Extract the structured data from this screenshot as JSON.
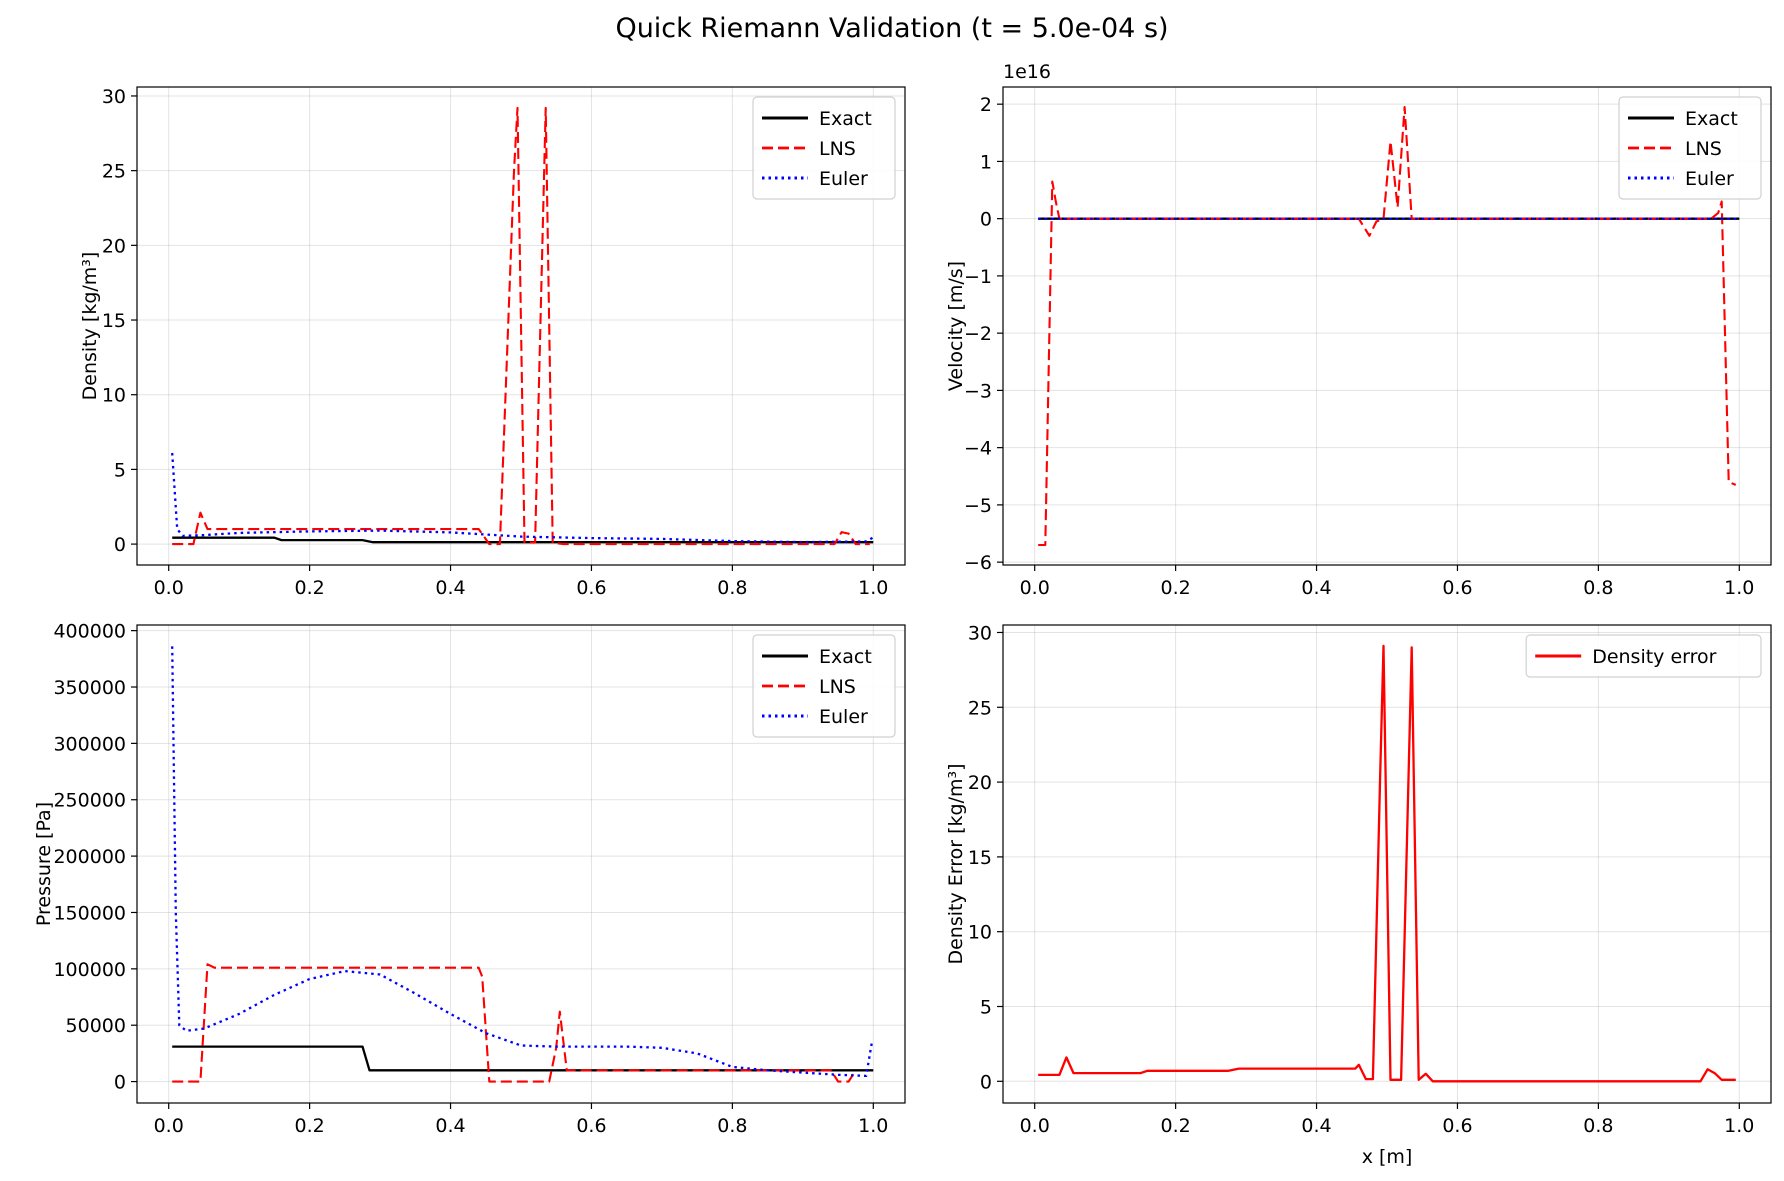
{
  "figure": {
    "title": "Quick Riemann Validation (t = 5.0e-04 s)"
  },
  "colors": {
    "exact": "#000000",
    "lns": "#ff0000",
    "euler": "#0000ff",
    "error": "#ff0000"
  },
  "chart_data": [
    {
      "type": "line",
      "ylabel": "Density [kg/m³]",
      "xlabel": "",
      "xlim": [
        -0.045,
        1.045
      ],
      "ylim": [
        -1.4,
        30.6
      ],
      "xticks": [
        0.0,
        0.2,
        0.4,
        0.6,
        0.8,
        1.0
      ],
      "xtick_labels": [
        "0.0",
        "0.2",
        "0.4",
        "0.6",
        "0.8",
        "1.0"
      ],
      "yticks": [
        0,
        5,
        10,
        15,
        20,
        25,
        30
      ],
      "ytick_labels": [
        "0",
        "5",
        "10",
        "15",
        "20",
        "25",
        "30"
      ],
      "grid": true,
      "legend": "upper right",
      "series": [
        {
          "name": "Exact",
          "style": "solid",
          "color": "#000000",
          "x": [
            0.005,
            0.15,
            0.16,
            0.275,
            0.29,
            1.0
          ],
          "y": [
            0.43,
            0.43,
            0.27,
            0.27,
            0.125,
            0.125
          ]
        },
        {
          "name": "LNS",
          "style": "dashed",
          "color": "#ff0000",
          "x": [
            0.005,
            0.035,
            0.045,
            0.055,
            0.15,
            0.3,
            0.44,
            0.455,
            0.47,
            0.49,
            0.495,
            0.505,
            0.52,
            0.535,
            0.545,
            0.56,
            0.6,
            0.9,
            0.945,
            0.955,
            0.965,
            0.975,
            0.995
          ],
          "y": [
            0.0,
            0.0,
            2.1,
            1.0,
            1.0,
            1.0,
            1.0,
            0.0,
            0.0,
            25.0,
            29.2,
            0.1,
            0.1,
            29.2,
            0.1,
            0.0,
            0.0,
            0.0,
            0.0,
            0.8,
            0.7,
            0.0,
            0.0
          ]
        },
        {
          "name": "Euler",
          "style": "dotted",
          "color": "#0000ff",
          "x": [
            0.005,
            0.012,
            0.02,
            0.05,
            0.1,
            0.2,
            0.3,
            0.4,
            0.5,
            0.6,
            0.7,
            0.8,
            0.9,
            0.99,
            1.0
          ],
          "y": [
            6.1,
            1.0,
            0.55,
            0.6,
            0.75,
            0.85,
            0.9,
            0.78,
            0.5,
            0.4,
            0.35,
            0.2,
            0.13,
            0.18,
            0.45
          ]
        }
      ]
    },
    {
      "type": "line",
      "ylabel": "Velocity [m/s]",
      "xlabel": "",
      "offset_text": "1e16",
      "xlim": [
        -0.045,
        1.045
      ],
      "ylim": [
        -6.05,
        2.3
      ],
      "xticks": [
        0.0,
        0.2,
        0.4,
        0.6,
        0.8,
        1.0
      ],
      "xtick_labels": [
        "0.0",
        "0.2",
        "0.4",
        "0.6",
        "0.8",
        "1.0"
      ],
      "yticks": [
        -6,
        -5,
        -4,
        -3,
        -2,
        -1,
        0,
        1,
        2
      ],
      "ytick_labels": [
        "−6",
        "−5",
        "−4",
        "−3",
        "−2",
        "−1",
        "0",
        "1",
        "2"
      ],
      "grid": true,
      "legend": "upper right",
      "series": [
        {
          "name": "Exact",
          "style": "solid",
          "color": "#000000",
          "x": [
            0.005,
            1.0
          ],
          "y": [
            0.0,
            0.0
          ]
        },
        {
          "name": "LNS",
          "style": "dashed",
          "color": "#ff0000",
          "x": [
            0.005,
            0.015,
            0.025,
            0.03,
            0.035,
            0.06,
            0.2,
            0.46,
            0.475,
            0.485,
            0.495,
            0.505,
            0.515,
            0.525,
            0.535,
            0.6,
            0.9,
            0.96,
            0.97,
            0.975,
            0.985,
            0.995
          ],
          "y": [
            -5.7,
            -5.7,
            0.65,
            0.3,
            0.0,
            0.0,
            0.0,
            0.0,
            -0.3,
            -0.05,
            0.0,
            1.35,
            0.2,
            1.95,
            0.0,
            0.0,
            0.0,
            0.0,
            0.1,
            0.3,
            -4.6,
            -4.65
          ]
        },
        {
          "name": "Euler",
          "style": "dotted",
          "color": "#0000ff",
          "x": [
            0.005,
            1.0
          ],
          "y": [
            0.0,
            0.0
          ]
        }
      ]
    },
    {
      "type": "line",
      "ylabel": "Pressure [Pa]",
      "xlabel": "",
      "xlim": [
        -0.045,
        1.045
      ],
      "ylim": [
        -19000,
        405000
      ],
      "xticks": [
        0.0,
        0.2,
        0.4,
        0.6,
        0.8,
        1.0
      ],
      "xtick_labels": [
        "0.0",
        "0.2",
        "0.4",
        "0.6",
        "0.8",
        "1.0"
      ],
      "yticks": [
        0,
        50000,
        100000,
        150000,
        200000,
        250000,
        300000,
        350000,
        400000
      ],
      "ytick_labels": [
        "0",
        "50000",
        "100000",
        "150000",
        "200000",
        "250000",
        "300000",
        "350000",
        "400000"
      ],
      "grid": true,
      "legend": "upper right",
      "series": [
        {
          "name": "Exact",
          "style": "solid",
          "color": "#000000",
          "x": [
            0.005,
            0.275,
            0.285,
            1.0
          ],
          "y": [
            31000,
            31000,
            10000,
            10000
          ]
        },
        {
          "name": "LNS",
          "style": "dashed",
          "color": "#ff0000",
          "x": [
            0.005,
            0.045,
            0.055,
            0.065,
            0.2,
            0.44,
            0.445,
            0.455,
            0.54,
            0.55,
            0.555,
            0.565,
            0.7,
            0.94,
            0.95,
            0.965,
            0.975
          ],
          "y": [
            0,
            0,
            104000,
            101000,
            101000,
            101000,
            93000,
            0,
            0,
            30000,
            62000,
            10000,
            10000,
            10000,
            0,
            0,
            10000
          ]
        },
        {
          "name": "Euler",
          "style": "dotted",
          "color": "#0000ff",
          "x": [
            0.005,
            0.01,
            0.015,
            0.025,
            0.05,
            0.1,
            0.15,
            0.2,
            0.25,
            0.3,
            0.35,
            0.4,
            0.45,
            0.5,
            0.55,
            0.6,
            0.65,
            0.7,
            0.75,
            0.8,
            0.85,
            0.9,
            0.95,
            0.99,
            0.998
          ],
          "y": [
            386000,
            150000,
            50000,
            45000,
            47000,
            60000,
            77000,
            91000,
            98000,
            95000,
            78000,
            60000,
            43000,
            32000,
            31000,
            31000,
            31000,
            30000,
            25000,
            13000,
            10000,
            8000,
            6000,
            5000,
            35000
          ]
        }
      ]
    },
    {
      "type": "line",
      "ylabel": "Density Error [kg/m³]",
      "xlabel": "x [m]",
      "xlim": [
        -0.045,
        1.045
      ],
      "ylim": [
        -1.45,
        30.5
      ],
      "xticks": [
        0.0,
        0.2,
        0.4,
        0.6,
        0.8,
        1.0
      ],
      "xtick_labels": [
        "0.0",
        "0.2",
        "0.4",
        "0.6",
        "0.8",
        "1.0"
      ],
      "yticks": [
        0,
        5,
        10,
        15,
        20,
        25,
        30
      ],
      "ytick_labels": [
        "0",
        "5",
        "10",
        "15",
        "20",
        "25",
        "30"
      ],
      "grid": true,
      "legend": "upper right",
      "series": [
        {
          "name": "Density error",
          "style": "solid",
          "color": "#ff0000",
          "x": [
            0.005,
            0.035,
            0.045,
            0.055,
            0.15,
            0.16,
            0.275,
            0.29,
            0.44,
            0.455,
            0.46,
            0.47,
            0.48,
            0.49,
            0.495,
            0.505,
            0.52,
            0.535,
            0.545,
            0.555,
            0.565,
            0.6,
            0.9,
            0.945,
            0.955,
            0.965,
            0.975,
            0.995
          ],
          "y": [
            0.43,
            0.43,
            1.6,
            0.55,
            0.55,
            0.7,
            0.7,
            0.85,
            0.85,
            0.85,
            1.1,
            0.15,
            0.15,
            20.0,
            29.1,
            0.1,
            0.1,
            29.0,
            0.1,
            0.5,
            0.0,
            0.0,
            0.0,
            0.0,
            0.8,
            0.55,
            0.1,
            0.1
          ]
        }
      ]
    }
  ]
}
